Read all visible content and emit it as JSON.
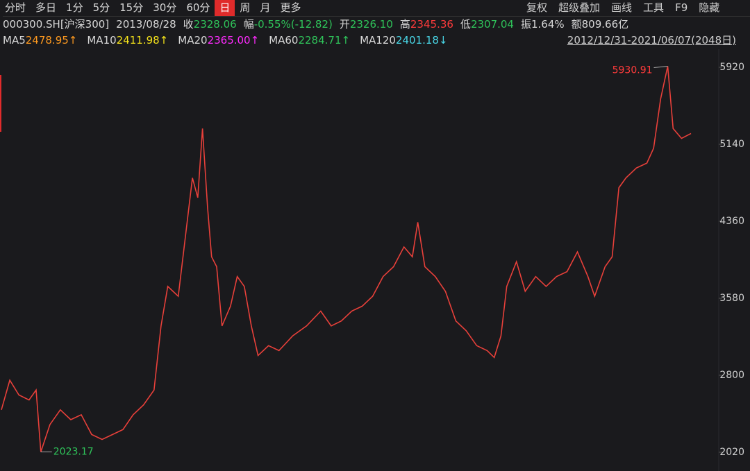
{
  "header": {
    "tabs": [
      "分时",
      "多日",
      "1分",
      "5分",
      "15分",
      "30分",
      "60分",
      "日",
      "周",
      "月",
      "更多"
    ],
    "active_tab": 7,
    "tools": [
      "复权",
      "超级叠加",
      "画线",
      "工具",
      "F9",
      "隐藏"
    ],
    "quote": [
      {
        "label": "000300.SH[沪深300]",
        "value": "",
        "color": "#d8d8d8"
      },
      {
        "label": "2013/08/28",
        "value": "",
        "color": "#d8d8d8"
      },
      {
        "label": "收",
        "value": "2328.06",
        "color": "#2fc45a"
      },
      {
        "label": "幅",
        "value": "-0.55%(-12.82)",
        "color": "#2fc45a"
      },
      {
        "label": "开",
        "value": "2326.10",
        "color": "#2fc45a"
      },
      {
        "label": "高",
        "value": "2345.36",
        "color": "#ff3b3b"
      },
      {
        "label": "低",
        "value": "2307.04",
        "color": "#2fc45a"
      },
      {
        "label": "振1.64%",
        "value": "",
        "color": "#d8d8d8"
      },
      {
        "label": "额809.66亿",
        "value": "",
        "color": "#d8d8d8"
      }
    ],
    "ma": [
      {
        "label": "MA5",
        "value": "2478.95↑",
        "color": "#ff9a1f"
      },
      {
        "label": "MA10",
        "value": "2411.98↑",
        "color": "#f5e31a"
      },
      {
        "label": "MA20",
        "value": "2365.00↑",
        "color": "#ff2bff"
      },
      {
        "label": "MA60",
        "value": "2284.71↑",
        "color": "#2fc45a"
      },
      {
        "label": "MA120",
        "value": "2401.18↓",
        "color": "#49d6e6"
      }
    ],
    "range": "2012/12/31-2021/06/07(2048日)"
  },
  "chart_data": {
    "type": "line",
    "x": [
      0,
      25,
      52,
      82,
      103,
      117,
      144,
      175,
      206,
      237,
      268,
      299,
      330,
      361,
      391,
      422,
      453,
      474,
      494,
      525,
      546,
      567,
      583,
      597,
      612,
      624,
      639,
      655,
      680,
      700,
      721,
      742,
      762,
      793,
      824,
      865,
      906,
      948,
      979,
      1009,
      1040,
      1071,
      1102,
      1133,
      1164,
      1195,
      1220,
      1236,
      1257,
      1288,
      1318,
      1349,
      1380,
      1411,
      1442,
      1463,
      1483,
      1500,
      1529,
      1555,
      1586,
      1617,
      1648,
      1679,
      1710,
      1741,
      1761,
      1792,
      1813,
      1833,
      1854,
      1885,
      1916,
      1936,
      1957,
      1978,
      1994,
      2019,
      2047
    ],
    "series": [
      {
        "name": "000300.SH",
        "color": "#e8403a",
        "values": [
          2450,
          2750,
          2600,
          2550,
          2650,
          2023.17,
          2300,
          2450,
          2350,
          2400,
          2200,
          2150,
          2200,
          2250,
          2400,
          2500,
          2650,
          3300,
          3700,
          3600,
          4200,
          4800,
          4600,
          5300,
          4500,
          4000,
          3900,
          3300,
          3500,
          3800,
          3700,
          3300,
          3000,
          3100,
          3050,
          3200,
          3300,
          3450,
          3300,
          3350,
          3450,
          3500,
          3600,
          3800,
          3900,
          4100,
          4000,
          4350,
          3900,
          3800,
          3650,
          3350,
          3250,
          3100,
          3050,
          2980,
          3200,
          3700,
          3950,
          3650,
          3800,
          3700,
          3800,
          3850,
          4050,
          3800,
          3600,
          3900,
          4000,
          4700,
          4800,
          4900,
          4950,
          5100,
          5600,
          5930.91,
          5300,
          5200,
          5250
        ]
      }
    ],
    "xlim": [
      0,
      2047
    ],
    "ylim": [
      1830,
      6103
    ],
    "yticks": [
      2020,
      2800,
      3580,
      4360,
      5140,
      5920
    ],
    "max_index": 75,
    "min_index": 5,
    "annotation_color_max": "#ff3b3b",
    "annotation_color_min": "#2fc45a"
  }
}
